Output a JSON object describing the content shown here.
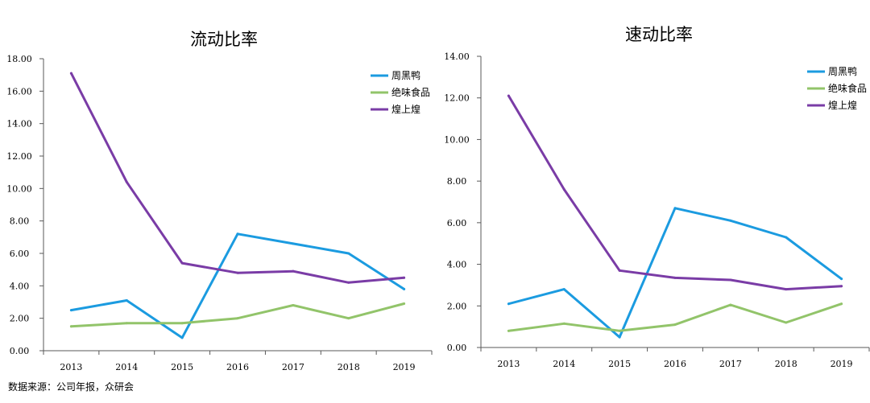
{
  "source": "数据来源：公司年报，众研会",
  "colors": {
    "zhouheiya": "#1b9be0",
    "juewei": "#92c46a",
    "huangshanghuang": "#7a3ca6",
    "axis": "#595959"
  },
  "chart_data": [
    {
      "type": "line",
      "title": "流动比率",
      "categories": [
        "2013",
        "2014",
        "2015",
        "2016",
        "2017",
        "2018",
        "2019"
      ],
      "ylim": [
        0,
        18
      ],
      "yticks": [
        "0.00",
        "2.00",
        "4.00",
        "6.00",
        "8.00",
        "10.00",
        "12.00",
        "14.00",
        "16.00",
        "18.00"
      ],
      "legend_position": "top-right",
      "series": [
        {
          "name": "周黑鸭",
          "color": "#1b9be0",
          "values": [
            2.5,
            3.1,
            0.8,
            7.2,
            6.6,
            6.0,
            3.8
          ]
        },
        {
          "name": "绝味食品",
          "color": "#92c46a",
          "values": [
            1.5,
            1.7,
            1.7,
            2.0,
            2.8,
            2.0,
            2.9
          ]
        },
        {
          "name": "煌上煌",
          "color": "#7a3ca6",
          "values": [
            17.1,
            10.4,
            5.4,
            4.8,
            4.9,
            4.2,
            4.5
          ]
        }
      ]
    },
    {
      "type": "line",
      "title": "速动比率",
      "categories": [
        "2013",
        "2014",
        "2015",
        "2016",
        "2017",
        "2018",
        "2019"
      ],
      "ylim": [
        0,
        14
      ],
      "yticks": [
        "0.00",
        "2.00",
        "4.00",
        "6.00",
        "8.00",
        "10.00",
        "12.00",
        "14.00"
      ],
      "legend_position": "top-right",
      "series": [
        {
          "name": "周黑鸭",
          "color": "#1b9be0",
          "values": [
            2.1,
            2.8,
            0.5,
            6.7,
            6.1,
            5.3,
            3.3
          ]
        },
        {
          "name": "绝味食品",
          "color": "#92c46a",
          "values": [
            0.8,
            1.15,
            0.8,
            1.1,
            2.05,
            1.2,
            2.1
          ]
        },
        {
          "name": "煌上煌",
          "color": "#7a3ca6",
          "values": [
            12.1,
            7.6,
            3.7,
            3.35,
            3.25,
            2.8,
            2.95
          ]
        }
      ]
    }
  ]
}
